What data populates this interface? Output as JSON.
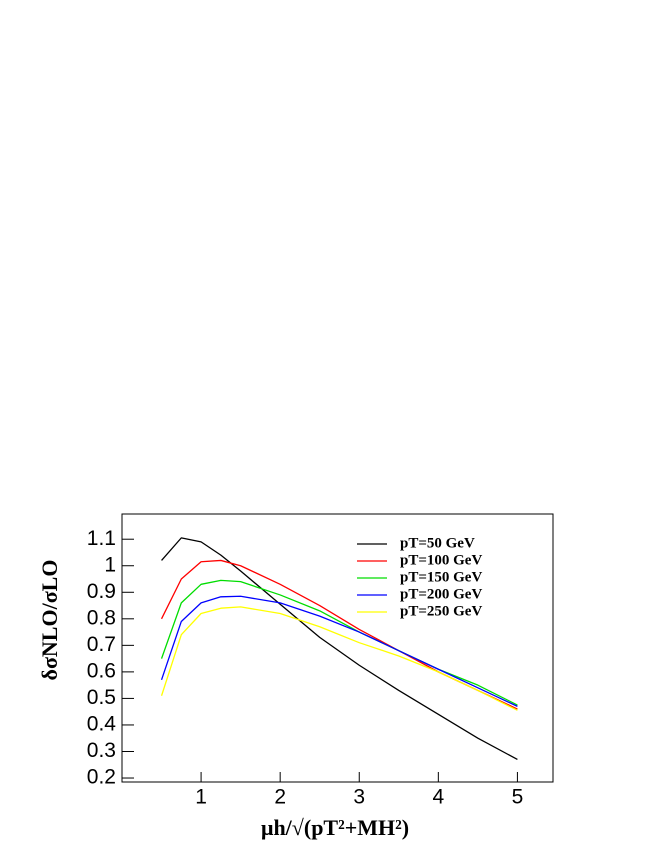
{
  "chart_data": {
    "type": "line",
    "x_label": "μh/√(pT²+MH²)",
    "y_label": "δσNLO/σLO",
    "x": [
      0.5,
      0.75,
      1,
      1.25,
      1.5,
      2,
      2.5,
      3,
      3.5,
      4,
      4.5,
      5
    ],
    "series": [
      {
        "name": "pT=50 GeV",
        "color": "#000000",
        "values": [
          1.02,
          1.105,
          1.09,
          1.04,
          0.98,
          0.855,
          0.73,
          0.625,
          0.53,
          0.44,
          0.35,
          0.27
        ]
      },
      {
        "name": "pT=100 GeV",
        "color": "#ff0000",
        "values": [
          0.8,
          0.95,
          1.015,
          1.02,
          1.0,
          0.93,
          0.85,
          0.76,
          0.68,
          0.6,
          0.53,
          0.46
        ]
      },
      {
        "name": "pT=150 GeV",
        "color": "#00dd00",
        "values": [
          0.65,
          0.86,
          0.93,
          0.945,
          0.94,
          0.89,
          0.83,
          0.75,
          0.68,
          0.61,
          0.55,
          0.475
        ]
      },
      {
        "name": "pT=200 GeV",
        "color": "#0000ff",
        "values": [
          0.57,
          0.79,
          0.86,
          0.883,
          0.885,
          0.86,
          0.81,
          0.75,
          0.68,
          0.61,
          0.54,
          0.47
        ]
      },
      {
        "name": "pT=250 GeV",
        "color": "#ffff00",
        "values": [
          0.51,
          0.74,
          0.82,
          0.84,
          0.845,
          0.82,
          0.77,
          0.71,
          0.66,
          0.6,
          0.53,
          0.455
        ]
      }
    ],
    "xlim": [
      0,
      5.45
    ],
    "xticks": [
      1,
      2,
      3,
      4,
      5
    ],
    "ylim": [
      0.185,
      1.195
    ],
    "yticks": [
      0.2,
      0.3,
      0.4,
      0.5,
      0.6,
      0.7,
      0.8,
      0.9,
      1,
      1.1
    ],
    "legend": "upper-right"
  }
}
